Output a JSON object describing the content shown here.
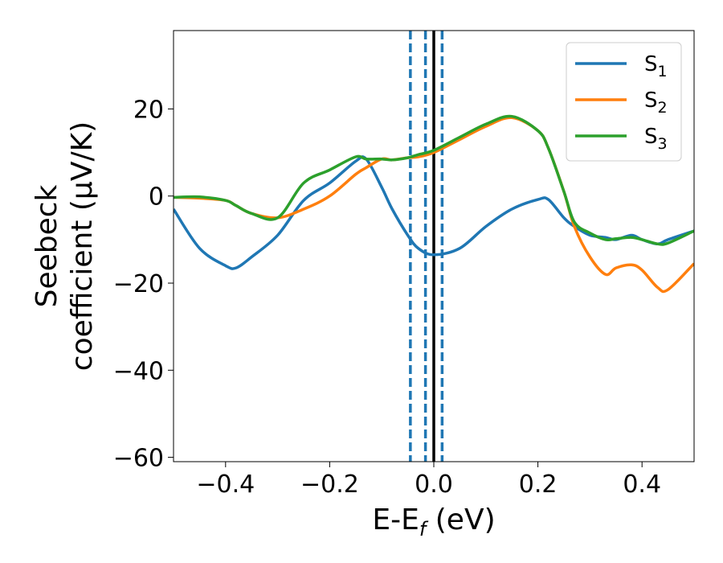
{
  "chart_data": {
    "type": "line",
    "xlabel": "E-E",
    "xlabel_sub": "f",
    "xlabel_unit": " (eV)",
    "ylabel_line1": "Seebeck",
    "ylabel_line2": "coefficient  (μV/K)",
    "xlim": [
      -0.5,
      0.5
    ],
    "ylim": [
      -61,
      38
    ],
    "x_ticks": [
      -0.4,
      -0.2,
      0.0,
      0.2,
      0.4
    ],
    "x_tick_labels": [
      "−0.4",
      "−0.2",
      "0.0",
      "0.2",
      "0.4"
    ],
    "y_ticks": [
      -60,
      -40,
      -20,
      0,
      20
    ],
    "y_tick_labels": [
      "−60",
      "−40",
      "−20",
      "0",
      "20"
    ],
    "grid": false,
    "legend_position": "top-right",
    "vertical_lines": [
      {
        "x": -0.045,
        "style": "dashed",
        "color": "#1f77b4"
      },
      {
        "x": -0.016,
        "style": "dashed",
        "color": "#1f77b4"
      },
      {
        "x": 0.0,
        "style": "solid",
        "color": "#000000"
      },
      {
        "x": 0.016,
        "style": "dashed",
        "color": "#1f77b4"
      }
    ],
    "x": [
      -0.5,
      -0.45,
      -0.4,
      -0.38,
      -0.35,
      -0.3,
      -0.25,
      -0.2,
      -0.15,
      -0.13,
      -0.1,
      -0.08,
      -0.05,
      -0.03,
      0.0,
      0.05,
      0.1,
      0.15,
      0.2,
      0.22,
      0.25,
      0.27,
      0.3,
      0.33,
      0.35,
      0.38,
      0.4,
      0.43,
      0.45,
      0.5
    ],
    "series": [
      {
        "name": "S",
        "sub": "1",
        "color": "#1f77b4",
        "values": [
          -3,
          -12,
          -16,
          -16.5,
          -14,
          -9,
          -1,
          3,
          8,
          8.5,
          2,
          -3,
          -9,
          -12,
          -13.5,
          -12,
          -7,
          -3,
          -0.8,
          -0.8,
          -5,
          -7,
          -9,
          -9.5,
          -10,
          -9,
          -10,
          -11,
          -10,
          -8
        ]
      },
      {
        "name": "S",
        "sub": "2",
        "color": "#ff7f0e",
        "values": [
          -0.3,
          -0.5,
          -1,
          -2.2,
          -4,
          -5,
          -3,
          0,
          5,
          6.5,
          8.5,
          8.3,
          8.8,
          9,
          10,
          13,
          16,
          18,
          15,
          11,
          1,
          -7,
          -14,
          -18,
          -16.5,
          -15.8,
          -17,
          -21,
          -21.5,
          -15.5
        ]
      },
      {
        "name": "S",
        "sub": "3",
        "color": "#2ca02c",
        "values": [
          -0.3,
          -0.2,
          -1,
          -2.2,
          -4,
          -5,
          3,
          6,
          9,
          8.5,
          8.5,
          8.3,
          8.8,
          9.5,
          10.5,
          13.5,
          16.5,
          18.3,
          15,
          11,
          1,
          -6,
          -8.5,
          -10,
          -9.8,
          -9.5,
          -10,
          -11,
          -10.8,
          -8
        ]
      }
    ]
  }
}
